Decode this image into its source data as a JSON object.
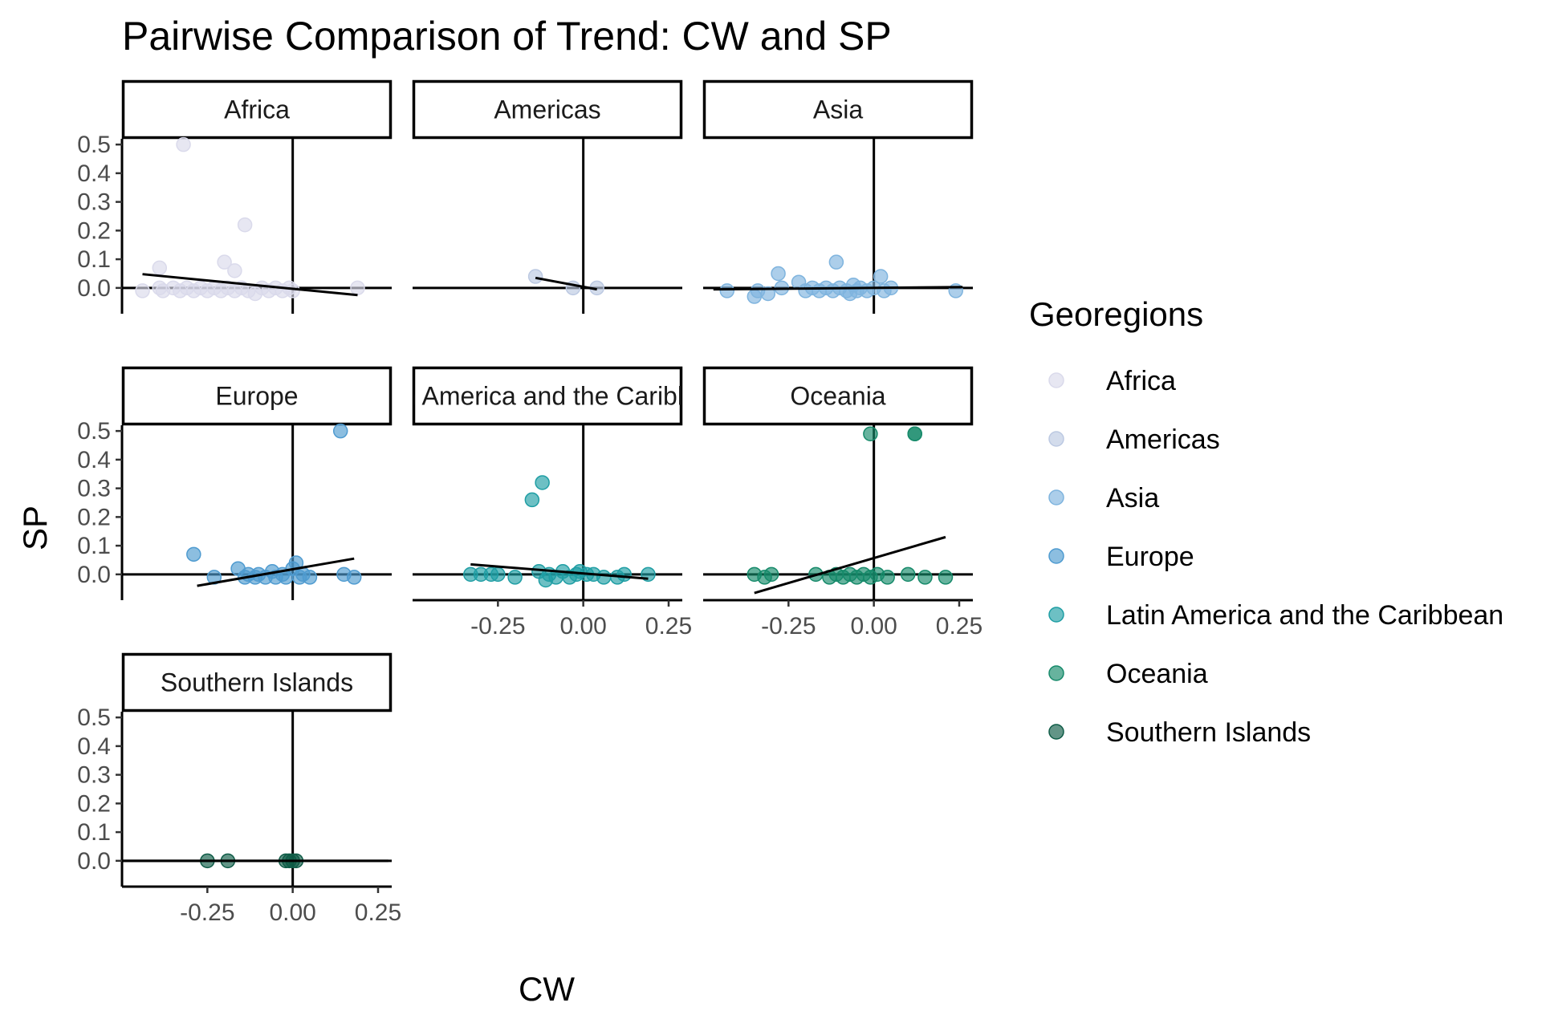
{
  "chart_data": {
    "type": "scatter",
    "title": "Pairwise Comparison of Trend: CW and SP",
    "xlabel": "CW",
    "ylabel": "SP",
    "xlim": [
      -0.5,
      0.29
    ],
    "ylim": [
      -0.09,
      0.52
    ],
    "x_ticks": [
      "-0.25",
      "0.00",
      "0.25"
    ],
    "x_tick_values": [
      -0.25,
      0,
      0.25
    ],
    "y_ticks": [
      "0.0",
      "0.1",
      "0.2",
      "0.3",
      "0.4",
      "0.5"
    ],
    "y_tick_values": [
      0,
      0.1,
      0.2,
      0.3,
      0.4,
      0.5
    ],
    "grid": false,
    "legend": {
      "title": "Georegions",
      "position": "right",
      "items": [
        {
          "label": "Africa",
          "color": "#dadaeb"
        },
        {
          "label": "Americas",
          "color": "#bcc9e2"
        },
        {
          "label": "Asia",
          "color": "#7fb4de"
        },
        {
          "label": "Europe",
          "color": "#4f9bd0"
        },
        {
          "label": "Latin America and the Caribbean",
          "color": "#1f9ea4"
        },
        {
          "label": "Oceania",
          "color": "#168a6a"
        },
        {
          "label": "Southern Islands",
          "color": "#0f5c47"
        }
      ]
    },
    "facets": [
      {
        "label": "Africa",
        "color": "#dadaeb",
        "trend": [
          [
            -0.44,
            0.048
          ],
          [
            0.19,
            -0.025
          ]
        ],
        "points": [
          [
            -0.32,
            0.5
          ],
          [
            -0.14,
            0.22
          ],
          [
            -0.39,
            0.07
          ],
          [
            -0.2,
            0.09
          ],
          [
            -0.17,
            0.06
          ],
          [
            -0.44,
            -0.01
          ],
          [
            -0.39,
            0.0
          ],
          [
            -0.38,
            -0.01
          ],
          [
            -0.35,
            0.0
          ],
          [
            -0.33,
            -0.01
          ],
          [
            -0.31,
            0.0
          ],
          [
            -0.29,
            -0.01
          ],
          [
            -0.27,
            0.0
          ],
          [
            -0.25,
            -0.01
          ],
          [
            -0.23,
            0.0
          ],
          [
            -0.21,
            -0.01
          ],
          [
            -0.19,
            0.0
          ],
          [
            -0.17,
            -0.01
          ],
          [
            -0.15,
            0.0
          ],
          [
            -0.13,
            -0.01
          ],
          [
            -0.11,
            -0.02
          ],
          [
            -0.09,
            0.0
          ],
          [
            -0.07,
            -0.01
          ],
          [
            -0.05,
            0.0
          ],
          [
            -0.03,
            -0.01
          ],
          [
            -0.01,
            0.0
          ],
          [
            0.0,
            -0.01
          ],
          [
            0.19,
            0.0
          ]
        ]
      },
      {
        "label": "Americas",
        "color": "#bcc9e2",
        "trend": [
          [
            -0.14,
            0.035
          ],
          [
            0.04,
            -0.005
          ]
        ],
        "points": [
          [
            -0.14,
            0.04
          ],
          [
            -0.03,
            0.0
          ],
          [
            0.04,
            0.0
          ]
        ]
      },
      {
        "label": "Asia",
        "color": "#7fb4de",
        "trend": [
          [
            -0.47,
            -0.005
          ],
          [
            0.26,
            0.003
          ]
        ],
        "points": [
          [
            -0.43,
            -0.01
          ],
          [
            -0.35,
            -0.03
          ],
          [
            -0.34,
            -0.01
          ],
          [
            -0.31,
            -0.02
          ],
          [
            -0.28,
            0.05
          ],
          [
            -0.27,
            0.0
          ],
          [
            -0.22,
            0.02
          ],
          [
            -0.2,
            -0.01
          ],
          [
            -0.18,
            0.0
          ],
          [
            -0.16,
            -0.01
          ],
          [
            -0.14,
            0.0
          ],
          [
            -0.12,
            -0.01
          ],
          [
            -0.11,
            0.09
          ],
          [
            -0.1,
            0.0
          ],
          [
            -0.08,
            -0.01
          ],
          [
            -0.07,
            -0.02
          ],
          [
            -0.06,
            0.01
          ],
          [
            -0.05,
            -0.01
          ],
          [
            -0.04,
            0.0
          ],
          [
            -0.02,
            -0.01
          ],
          [
            0.0,
            0.0
          ],
          [
            0.02,
            0.04
          ],
          [
            0.03,
            -0.01
          ],
          [
            0.05,
            0.0
          ],
          [
            0.24,
            -0.01
          ]
        ]
      },
      {
        "label": "Europe",
        "color": "#4f9bd0",
        "trend": [
          [
            -0.28,
            -0.04
          ],
          [
            0.18,
            0.055
          ]
        ],
        "points": [
          [
            0.14,
            0.5
          ],
          [
            -0.29,
            0.07
          ],
          [
            -0.23,
            -0.01
          ],
          [
            -0.16,
            0.02
          ],
          [
            -0.14,
            -0.01
          ],
          [
            -0.13,
            0.0
          ],
          [
            -0.11,
            -0.01
          ],
          [
            -0.1,
            0.0
          ],
          [
            -0.08,
            -0.01
          ],
          [
            -0.06,
            0.01
          ],
          [
            -0.05,
            -0.01
          ],
          [
            -0.03,
            0.0
          ],
          [
            -0.02,
            -0.01
          ],
          [
            0.0,
            0.02
          ],
          [
            0.01,
            0.04
          ],
          [
            0.02,
            -0.01
          ],
          [
            0.03,
            0.0
          ],
          [
            0.05,
            -0.01
          ],
          [
            0.15,
            0.0
          ],
          [
            0.18,
            -0.01
          ]
        ]
      },
      {
        "label": "Latin America and the Caribbean",
        "color": "#1f9ea4",
        "trend": [
          [
            -0.33,
            0.035
          ],
          [
            0.19,
            -0.015
          ]
        ],
        "points": [
          [
            -0.12,
            0.32
          ],
          [
            -0.15,
            0.26
          ],
          [
            -0.33,
            0.0
          ],
          [
            -0.3,
            0.0
          ],
          [
            -0.27,
            0.0
          ],
          [
            -0.25,
            0.0
          ],
          [
            -0.2,
            -0.01
          ],
          [
            -0.13,
            0.01
          ],
          [
            -0.11,
            -0.02
          ],
          [
            -0.1,
            0.0
          ],
          [
            -0.08,
            -0.01
          ],
          [
            -0.06,
            0.01
          ],
          [
            -0.04,
            -0.01
          ],
          [
            -0.02,
            0.0
          ],
          [
            -0.01,
            0.01
          ],
          [
            0.01,
            0.0
          ],
          [
            0.03,
            0.0
          ],
          [
            0.06,
            -0.01
          ],
          [
            0.1,
            -0.01
          ],
          [
            0.12,
            0.0
          ],
          [
            0.19,
            0.0
          ]
        ]
      },
      {
        "label": "Oceania",
        "color": "#168a6a",
        "trend": [
          [
            -0.35,
            -0.065
          ],
          [
            0.21,
            0.13
          ]
        ],
        "points": [
          [
            -0.01,
            0.49
          ],
          [
            0.12,
            0.49
          ],
          [
            0.12,
            0.49
          ],
          [
            -0.35,
            0.0
          ],
          [
            -0.32,
            -0.01
          ],
          [
            -0.3,
            0.0
          ],
          [
            -0.17,
            0.0
          ],
          [
            -0.13,
            -0.01
          ],
          [
            -0.11,
            0.0
          ],
          [
            -0.09,
            -0.01
          ],
          [
            -0.07,
            0.0
          ],
          [
            -0.05,
            -0.01
          ],
          [
            -0.03,
            0.0
          ],
          [
            -0.01,
            -0.01
          ],
          [
            0.01,
            0.0
          ],
          [
            0.04,
            -0.01
          ],
          [
            0.1,
            0.0
          ],
          [
            0.15,
            -0.01
          ],
          [
            0.21,
            -0.01
          ]
        ]
      },
      {
        "label": "Southern Islands",
        "color": "#0f5c47",
        "trend": [
          [
            -0.5,
            0.0
          ],
          [
            0.28,
            0.0
          ]
        ],
        "points": [
          [
            -0.25,
            0.0
          ],
          [
            -0.19,
            0.0
          ],
          [
            -0.02,
            0.0
          ],
          [
            -0.01,
            0.0
          ],
          [
            0.0,
            0.0
          ],
          [
            0.01,
            0.0
          ]
        ]
      }
    ]
  }
}
